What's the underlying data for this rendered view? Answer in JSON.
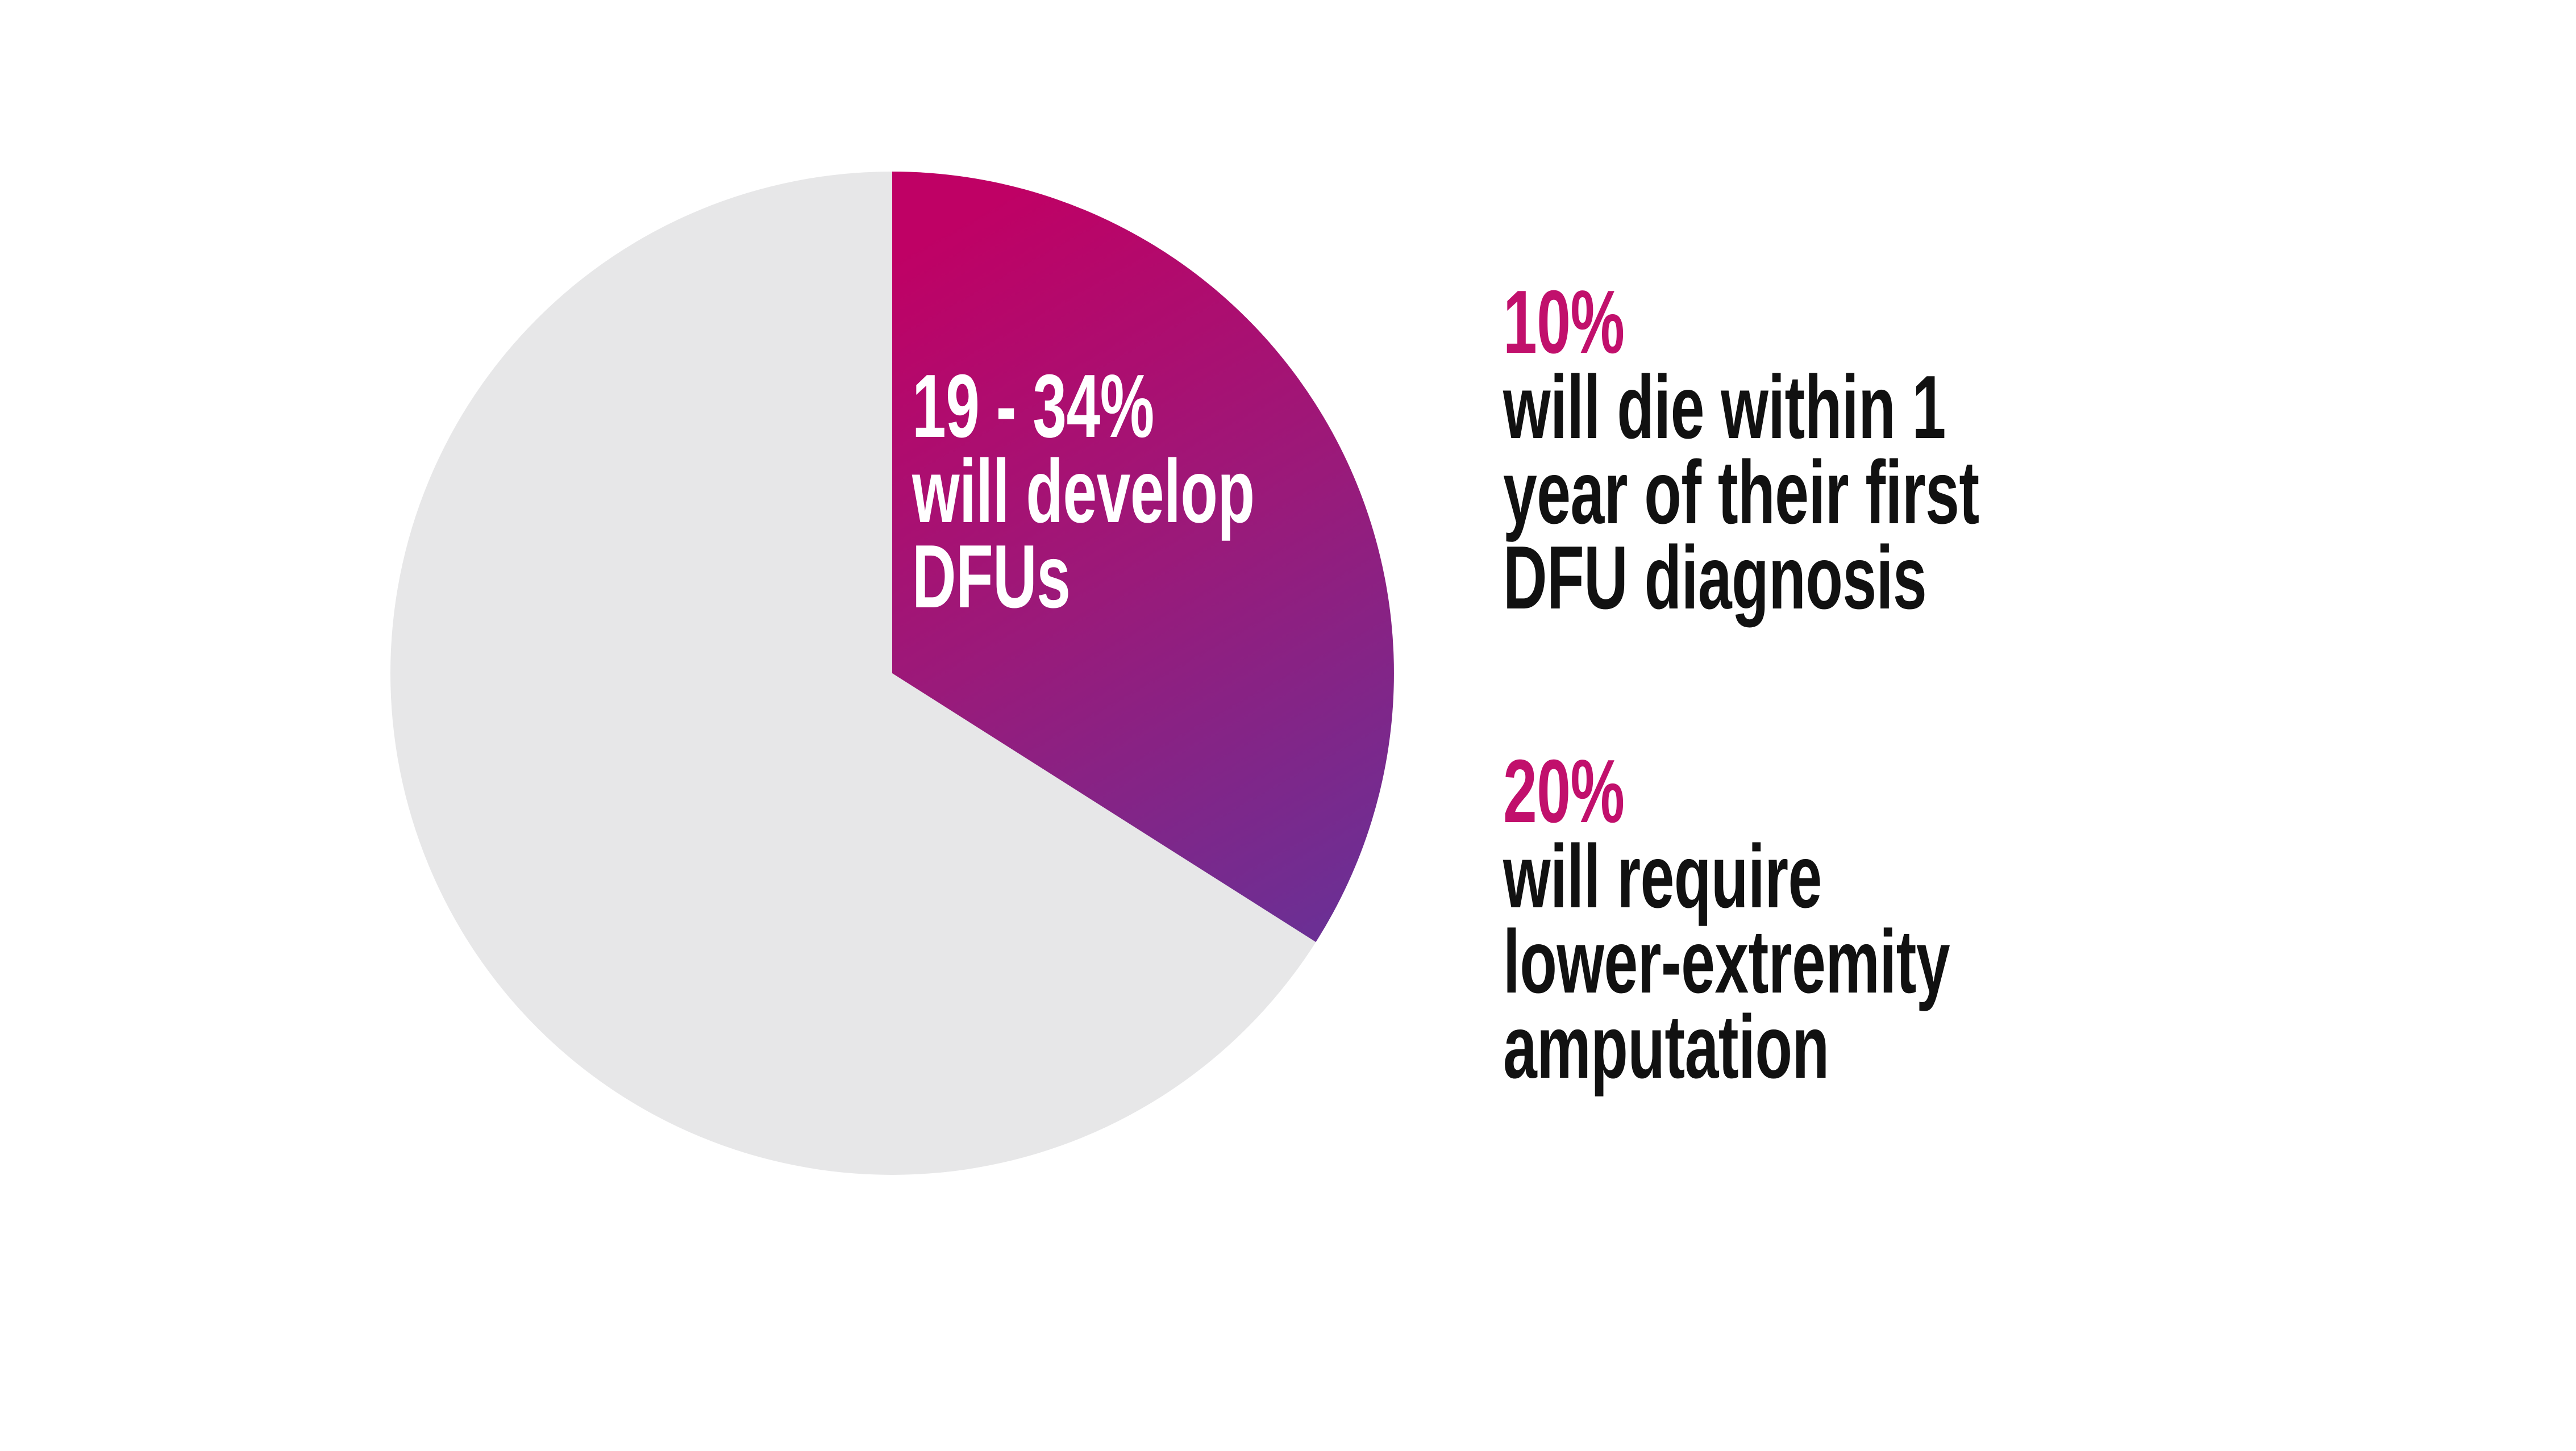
{
  "background_color": "#ffffff",
  "chart_data": {
    "type": "pie",
    "title": "",
    "start_angle_deg": 0,
    "direction": "clockwise",
    "slices": [
      {
        "label": "19 - 34% will develop DFUs",
        "label_lines": [
          "19 - 34%",
          "will develop",
          "DFUs"
        ],
        "value": 34,
        "gradient": [
          "#bf0165",
          "#9a1a7a",
          "#6c2f94"
        ],
        "label_color": "#ffffff"
      },
      {
        "label": "",
        "value": 66,
        "color": "#e7e7e8"
      }
    ],
    "legend": "none",
    "annotations": [
      "10% will die within 1 year of their first DFU diagnosis",
      "20% will require lower-extremity amputation"
    ]
  },
  "callouts": [
    {
      "percent": "10%",
      "percent_color": "#c1106c",
      "lines": [
        "will die within 1",
        "year of their first",
        "DFU diagnosis"
      ],
      "text_color": "#111111"
    },
    {
      "percent": "20%",
      "percent_color": "#c1106c",
      "lines": [
        "will require",
        "lower-extremity",
        "amputation"
      ],
      "text_color": "#111111"
    }
  ]
}
